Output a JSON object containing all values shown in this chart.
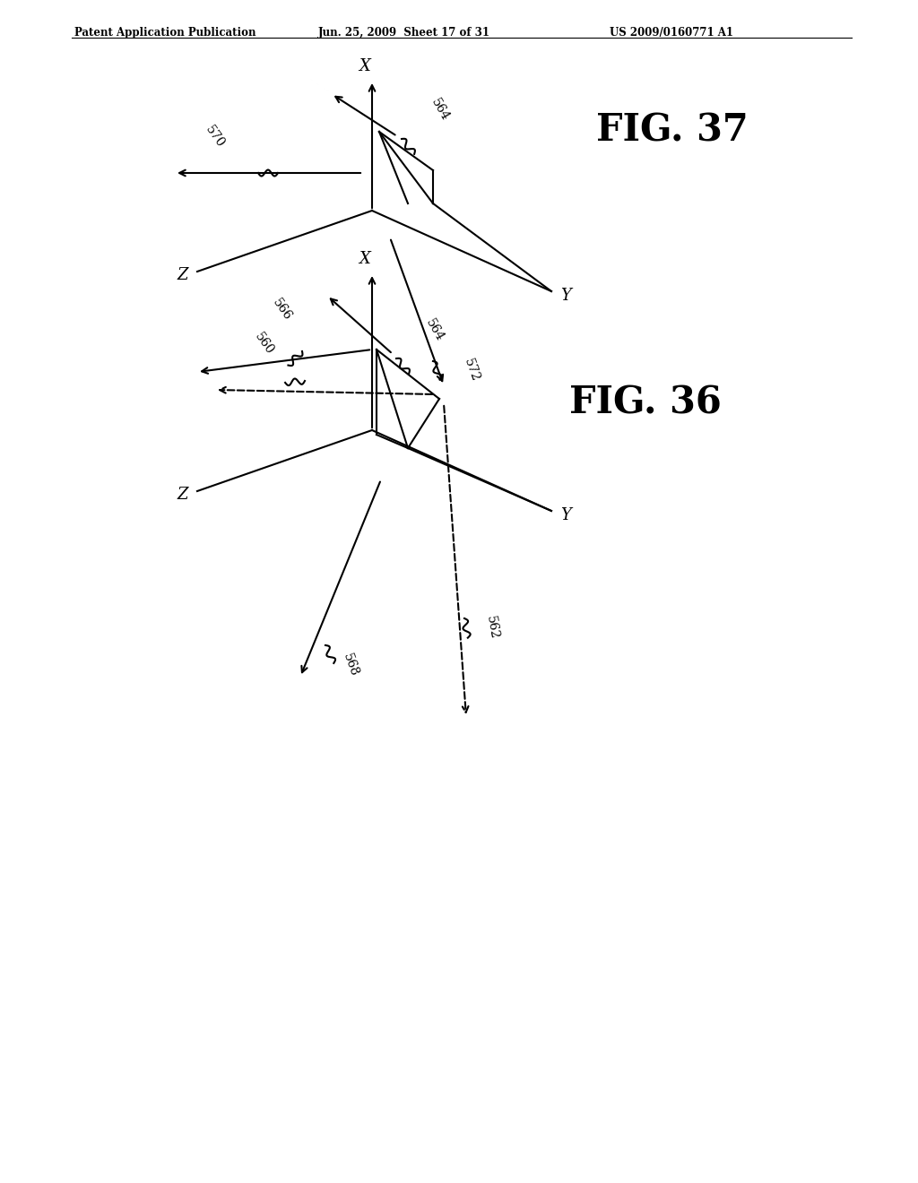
{
  "header_left": "Patent Application Publication",
  "header_mid": "Jun. 25, 2009  Sheet 17 of 31",
  "header_right": "US 2009/0160771 A1",
  "fig37_label": "FIG. 37",
  "fig36_label": "FIG. 36",
  "bg_color": "#ffffff",
  "line_color": "#000000"
}
